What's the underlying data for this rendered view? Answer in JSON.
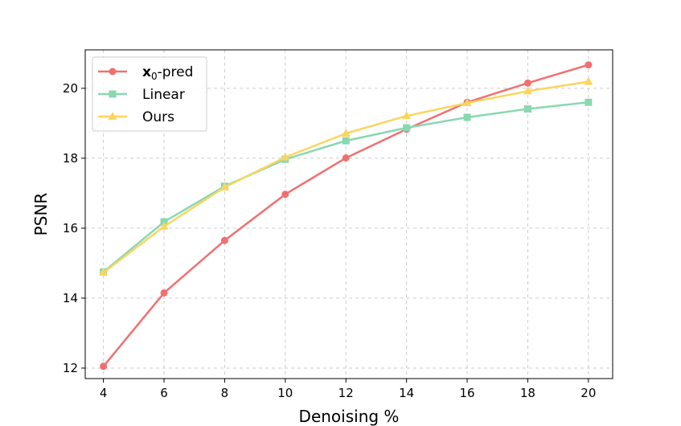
{
  "chart_data": {
    "type": "line",
    "title": "",
    "xlabel": "Denoising %",
    "ylabel": "PSNR",
    "x": [
      4,
      6,
      8,
      10,
      12,
      14,
      16,
      18,
      20
    ],
    "xticks": [
      "4",
      "6",
      "8",
      "10",
      "12",
      "14",
      "16",
      "18",
      "20"
    ],
    "yticks": [
      "12",
      "14",
      "16",
      "18",
      "20"
    ],
    "xlim": [
      3.4,
      20.8
    ],
    "ylim": [
      11.7,
      21.1
    ],
    "grid": true,
    "legend_position": "top-left",
    "series": [
      {
        "name": "x0-pred",
        "label_main": "x",
        "label_sub": "0",
        "label_rest": "-pred",
        "marker": "circle",
        "color": "#f07070",
        "values": [
          12.05,
          14.15,
          15.65,
          16.97,
          18.01,
          18.83,
          19.6,
          20.15,
          20.67
        ]
      },
      {
        "name": "Linear",
        "label_main": "Linear",
        "marker": "square",
        "color": "#88d8b0",
        "values": [
          14.75,
          16.18,
          17.2,
          17.97,
          18.5,
          18.87,
          19.17,
          19.41,
          19.6
        ]
      },
      {
        "name": "Ours",
        "label_main": "Ours",
        "marker": "triangle",
        "color": "#fbd560",
        "values": [
          14.73,
          16.05,
          17.17,
          18.03,
          18.71,
          19.21,
          19.58,
          19.92,
          20.19
        ]
      }
    ]
  }
}
